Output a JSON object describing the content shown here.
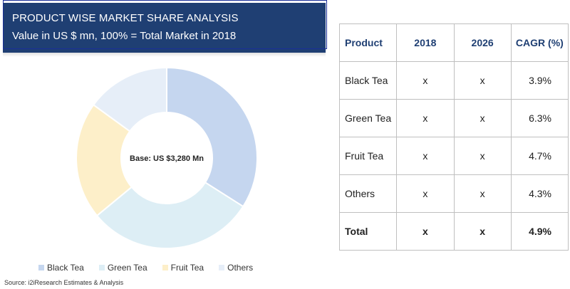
{
  "header": {
    "title": "PRODUCT WISE MARKET SHARE ANALYSIS",
    "subtitle": "Value in US $ mn, 100% = Total Market in 2018"
  },
  "chart_data": {
    "type": "pie",
    "categories": [
      "Black Tea",
      "Green Tea",
      "Fruit Tea",
      "Others"
    ],
    "values": [
      34,
      30,
      21,
      15
    ],
    "colors": [
      "#c5d6ef",
      "#ddeef5",
      "#fdefc9",
      "#e6eef8"
    ],
    "center_label": "Base: US $3,280 Mn",
    "legend_position": "bottom"
  },
  "legend": [
    {
      "label": "Black Tea",
      "color": "#c5d6ef"
    },
    {
      "label": "Green Tea",
      "color": "#ddeef5"
    },
    {
      "label": "Fruit Tea",
      "color": "#fdefc9"
    },
    {
      "label": "Others",
      "color": "#e6eef8"
    }
  ],
  "source": "Source: i2iResearch Estimates & Analysis",
  "table": {
    "headers": [
      "Product",
      "2018",
      "2026",
      "CAGR (%)"
    ],
    "rows": [
      [
        "Black Tea",
        "x",
        "x",
        "3.9%"
      ],
      [
        "Green Tea",
        "x",
        "x",
        "6.3%"
      ],
      [
        "Fruit Tea",
        "x",
        "x",
        "4.7%"
      ],
      [
        "Others",
        "x",
        "x",
        "4.3%"
      ],
      [
        "Total",
        "x",
        "x",
        "4.9%"
      ]
    ]
  }
}
